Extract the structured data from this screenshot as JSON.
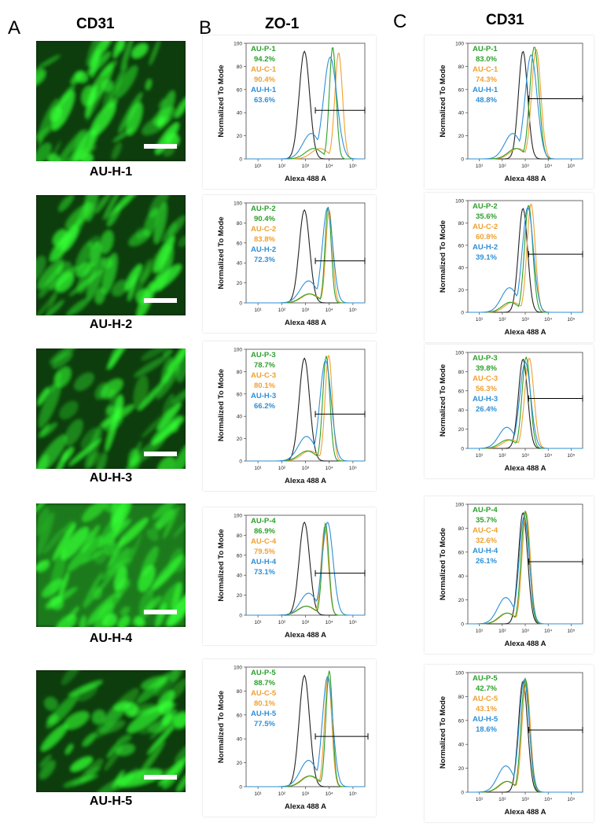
{
  "figure": {
    "panel_letters": [
      "A",
      "B",
      "C"
    ],
    "column_titles": [
      "CD31",
      "ZO-1",
      "CD31"
    ],
    "sample_labels": [
      "AU-H-1",
      "AU-H-2",
      "AU-H-3",
      "AU-H-4",
      "AU-H-5"
    ]
  },
  "colors": {
    "control_black": "#222222",
    "au_p_green": "#2ca02c",
    "au_c_orange": "#f0a030",
    "au_h_blue": "#2e8fd6",
    "micro_green": "#33ff33",
    "gate_bar": "#000000"
  },
  "chart_data": [
    {
      "id": "B1",
      "panel": "B",
      "marker": "ZO-1",
      "type": "line",
      "xlabel": "Alexa 488 A",
      "ylabel": "Normalized To Mode",
      "ylim": [
        0,
        100
      ],
      "yticks": [
        "0",
        "20",
        "40",
        "60",
        "80",
        "100"
      ],
      "xticks": [
        "10¹",
        "10²",
        "10³",
        "10⁴",
        "10⁵"
      ],
      "legend": [
        {
          "name": "AU-P-1",
          "value": "94.2%"
        },
        {
          "name": "AU-C-1",
          "value": "90.4%"
        },
        {
          "name": "AU-H-1",
          "value": "63.6%"
        }
      ],
      "peaks": {
        "control": [
          900,
          93,
          0.22
        ],
        "P": [
          14000,
          97,
          0.14
        ],
        "C": [
          25000,
          92,
          0.16
        ],
        "H": [
          11000,
          88,
          0.28
        ]
      },
      "gate_start": 2600
    },
    {
      "id": "B2",
      "panel": "B",
      "marker": "ZO-1",
      "type": "line",
      "xlabel": "Alexa 488 A",
      "ylabel": "Normalized To Mode",
      "ylim": [
        0,
        100
      ],
      "yticks": [
        "0",
        "20",
        "40",
        "60",
        "80",
        "100"
      ],
      "xticks": [
        "10¹",
        "10²",
        "10³",
        "10⁴",
        "10⁵"
      ],
      "legend": [
        {
          "name": "AU-P-2",
          "value": "90.4%"
        },
        {
          "name": "AU-C-2",
          "value": "83.8%"
        },
        {
          "name": "AU-H-2",
          "value": "72.3%"
        }
      ],
      "peaks": {
        "control": [
          900,
          93,
          0.22
        ],
        "P": [
          9000,
          96,
          0.13
        ],
        "C": [
          10000,
          93,
          0.14
        ],
        "H": [
          8500,
          95,
          0.22
        ]
      },
      "gate_start": 2600
    },
    {
      "id": "B3",
      "panel": "B",
      "marker": "ZO-1",
      "type": "line",
      "xlabel": "Alexa 488 A",
      "ylabel": "Normalized To Mode",
      "ylim": [
        0,
        100
      ],
      "yticks": [
        "0",
        "20",
        "40",
        "60",
        "80",
        "100"
      ],
      "xticks": [
        "10¹",
        "10²",
        "10³",
        "10⁴",
        "10⁵"
      ],
      "legend": [
        {
          "name": "AU-P-3",
          "value": "78.7%"
        },
        {
          "name": "AU-C-3",
          "value": "80.1%"
        },
        {
          "name": "AU-H-3",
          "value": "66.2%"
        }
      ],
      "peaks": {
        "control": [
          900,
          92,
          0.22
        ],
        "P": [
          7500,
          94,
          0.15
        ],
        "C": [
          9500,
          95,
          0.15
        ],
        "H": [
          7000,
          90,
          0.24
        ]
      },
      "gate_start": 2600
    },
    {
      "id": "B4",
      "panel": "B",
      "marker": "ZO-1",
      "type": "line",
      "xlabel": "Alexa 488 A",
      "ylabel": "Normalized To Mode",
      "ylim": [
        0,
        100
      ],
      "yticks": [
        "0",
        "20",
        "40",
        "60",
        "80",
        "100"
      ],
      "xticks": [
        "10¹",
        "10²",
        "10³",
        "10⁴",
        "10⁵"
      ],
      "legend": [
        {
          "name": "AU-P-4",
          "value": "86.9%"
        },
        {
          "name": "AU-C-4",
          "value": "79.5%"
        },
        {
          "name": "AU-H-4",
          "value": "73.1%"
        }
      ],
      "peaks": {
        "control": [
          900,
          93,
          0.22
        ],
        "P": [
          7000,
          92,
          0.14
        ],
        "C": [
          6500,
          89,
          0.15
        ],
        "H": [
          8500,
          93,
          0.23
        ]
      },
      "gate_start": 2600
    },
    {
      "id": "B5",
      "panel": "B",
      "marker": "ZO-1",
      "type": "line",
      "xlabel": "Alexa 488 A",
      "ylabel": "Normalized To Mode",
      "ylim": [
        0,
        100
      ],
      "yticks": [
        "0",
        "20",
        "40",
        "60",
        "80",
        "100"
      ],
      "xticks": [
        "10¹",
        "10²",
        "10³",
        "10⁴",
        "10⁵"
      ],
      "legend": [
        {
          "name": "AU-P-5",
          "value": "88.7%"
        },
        {
          "name": "AU-C-5",
          "value": "80.1%"
        },
        {
          "name": "AU-H-5",
          "value": "77.5%"
        }
      ],
      "peaks": {
        "control": [
          900,
          93,
          0.22
        ],
        "P": [
          10000,
          97,
          0.14
        ],
        "C": [
          9000,
          93,
          0.15
        ],
        "H": [
          8500,
          92,
          0.22
        ]
      },
      "gate_start": 2600
    },
    {
      "id": "C1",
      "panel": "C",
      "marker": "CD31",
      "type": "line",
      "xlabel": "Alexa 488 A",
      "ylabel": "Normalized To Mode",
      "ylim": [
        0,
        100
      ],
      "yticks": [
        "0",
        "20",
        "40",
        "60",
        "80",
        "100"
      ],
      "xticks": [
        "10¹",
        "10²",
        "10³",
        "10⁴",
        "10⁵"
      ],
      "legend": [
        {
          "name": "AU-P-1",
          "value": "83.0%"
        },
        {
          "name": "AU-C-1",
          "value": "74.3%"
        },
        {
          "name": "AU-H-1",
          "value": "48.8%"
        }
      ],
      "peaks": {
        "control": [
          800,
          93,
          0.2
        ],
        "P": [
          2500,
          97,
          0.2
        ],
        "C": [
          3000,
          95,
          0.2
        ],
        "H": [
          1800,
          90,
          0.26
        ]
      },
      "gate_start": 1400
    },
    {
      "id": "C2",
      "panel": "C",
      "marker": "CD31",
      "type": "line",
      "xlabel": "Alexa 488 A",
      "ylabel": "Normalized To Mode",
      "ylim": [
        0,
        100
      ],
      "yticks": [
        "0",
        "20",
        "40",
        "60",
        "80",
        "100"
      ],
      "xticks": [
        "10¹",
        "10²",
        "10³",
        "10⁴",
        "10⁵"
      ],
      "legend": [
        {
          "name": "AU-P-2",
          "value": "35.6%"
        },
        {
          "name": "AU-C-2",
          "value": "60.8%"
        },
        {
          "name": "AU-H-2",
          "value": "39.1%"
        }
      ],
      "peaks": {
        "control": [
          800,
          93,
          0.2
        ],
        "P": [
          1400,
          96,
          0.18
        ],
        "C": [
          1800,
          97,
          0.18
        ],
        "H": [
          1300,
          94,
          0.24
        ]
      },
      "gate_start": 1400
    },
    {
      "id": "C3",
      "panel": "C",
      "marker": "CD31",
      "type": "line",
      "xlabel": "Alexa 488 A",
      "ylabel": "Normalized To Mode",
      "ylim": [
        0,
        100
      ],
      "yticks": [
        "0",
        "20",
        "40",
        "60",
        "80",
        "100"
      ],
      "xticks": [
        "10¹",
        "10²",
        "10³",
        "10⁴",
        "10⁵"
      ],
      "legend": [
        {
          "name": "AU-P-3",
          "value": "39.8%"
        },
        {
          "name": "AU-C-3",
          "value": "56.3%"
        },
        {
          "name": "AU-H-3",
          "value": "26.4%"
        }
      ],
      "peaks": {
        "control": [
          800,
          93,
          0.2
        ],
        "P": [
          1100,
          95,
          0.18
        ],
        "C": [
          1500,
          94,
          0.2
        ],
        "H": [
          1000,
          90,
          0.24
        ]
      },
      "gate_start": 1400
    },
    {
      "id": "C4",
      "panel": "C",
      "marker": "CD31",
      "type": "line",
      "xlabel": "Alexa 488 A",
      "ylabel": "Normalized To Mode",
      "ylim": [
        0,
        100
      ],
      "yticks": [
        "0",
        "20",
        "40",
        "60",
        "80",
        "100"
      ],
      "xticks": [
        "10¹",
        "10²",
        "10³",
        "10⁴",
        "10⁵"
      ],
      "legend": [
        {
          "name": "AU-P-4",
          "value": "35.7%"
        },
        {
          "name": "AU-C-4",
          "value": "32.6%"
        },
        {
          "name": "AU-H-4",
          "value": "26.1%"
        }
      ],
      "peaks": {
        "control": [
          800,
          93,
          0.2
        ],
        "P": [
          1000,
          94,
          0.18
        ],
        "C": [
          1100,
          93,
          0.18
        ],
        "H": [
          900,
          90,
          0.22
        ]
      },
      "gate_start": 1400
    },
    {
      "id": "C5",
      "panel": "C",
      "marker": "CD31",
      "type": "line",
      "xlabel": "Alexa 488 A",
      "ylabel": "Normalized To Mode",
      "ylim": [
        0,
        100
      ],
      "yticks": [
        "0",
        "20",
        "40",
        "60",
        "80",
        "100"
      ],
      "xticks": [
        "10¹",
        "10²",
        "10³",
        "10⁴",
        "10⁵"
      ],
      "legend": [
        {
          "name": "AU-P-5",
          "value": "42.7%"
        },
        {
          "name": "AU-C-5",
          "value": "43.1%"
        },
        {
          "name": "AU-H-5",
          "value": "18.6%"
        }
      ],
      "peaks": {
        "control": [
          800,
          93,
          0.2
        ],
        "P": [
          1000,
          95,
          0.18
        ],
        "C": [
          1100,
          93,
          0.18
        ],
        "H": [
          900,
          94,
          0.22
        ]
      },
      "gate_start": 1400
    }
  ]
}
